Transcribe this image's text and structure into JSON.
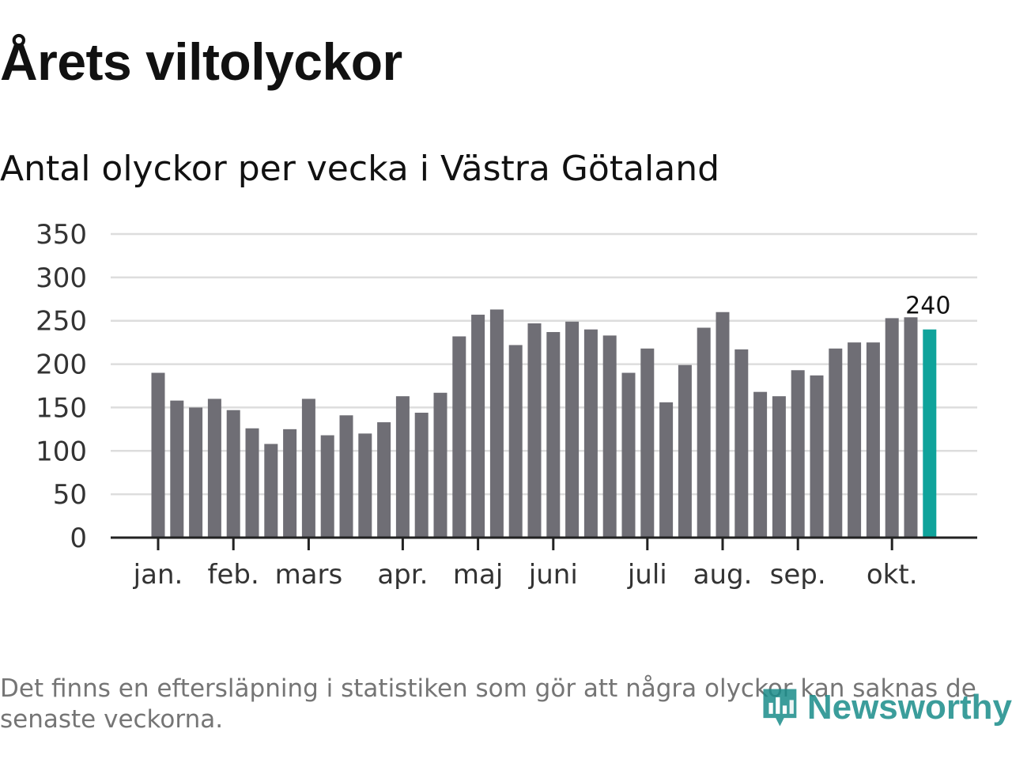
{
  "title": "Årets viltolyckor",
  "subtitle": "Antal olyckor per vecka i Västra Götaland",
  "footnote": {
    "line1": "Det finns en eftersläpning i statistiken som gör att några olyckor kan saknas de",
    "line2": "senaste veckorna."
  },
  "logo": {
    "text": "Newsworthy",
    "icon": "newsworthy-chart-icon"
  },
  "colors": {
    "bar": "#6f6e75",
    "highlight": "#0fa39b",
    "grid": "#dddddd",
    "axis": "#222222",
    "tick_label": "#333333"
  },
  "chart_data": {
    "type": "bar",
    "title": "Antal olyckor per vecka i Västra Götaland",
    "xlabel": "",
    "ylabel": "",
    "ylim": [
      0,
      350
    ],
    "yticks": [
      0,
      50,
      100,
      150,
      200,
      250,
      300,
      350
    ],
    "grid": true,
    "values": [
      190,
      158,
      150,
      160,
      147,
      126,
      108,
      125,
      160,
      118,
      141,
      120,
      133,
      163,
      144,
      167,
      232,
      257,
      263,
      222,
      247,
      237,
      249,
      240,
      233,
      190,
      218,
      156,
      199,
      242,
      260,
      217,
      168,
      163,
      193,
      187,
      218,
      225,
      225,
      253,
      254,
      240
    ],
    "highlight_index": 41,
    "highlight_label": "240",
    "month_labels": [
      {
        "label": "jan.",
        "week_index": 0
      },
      {
        "label": "feb.",
        "week_index": 4
      },
      {
        "label": "mars",
        "week_index": 8
      },
      {
        "label": "apr.",
        "week_index": 13
      },
      {
        "label": "maj",
        "week_index": 17
      },
      {
        "label": "juni",
        "week_index": 21
      },
      {
        "label": "juli",
        "week_index": 26
      },
      {
        "label": "aug.",
        "week_index": 30
      },
      {
        "label": "sep.",
        "week_index": 34
      },
      {
        "label": "okt.",
        "week_index": 39
      }
    ]
  }
}
